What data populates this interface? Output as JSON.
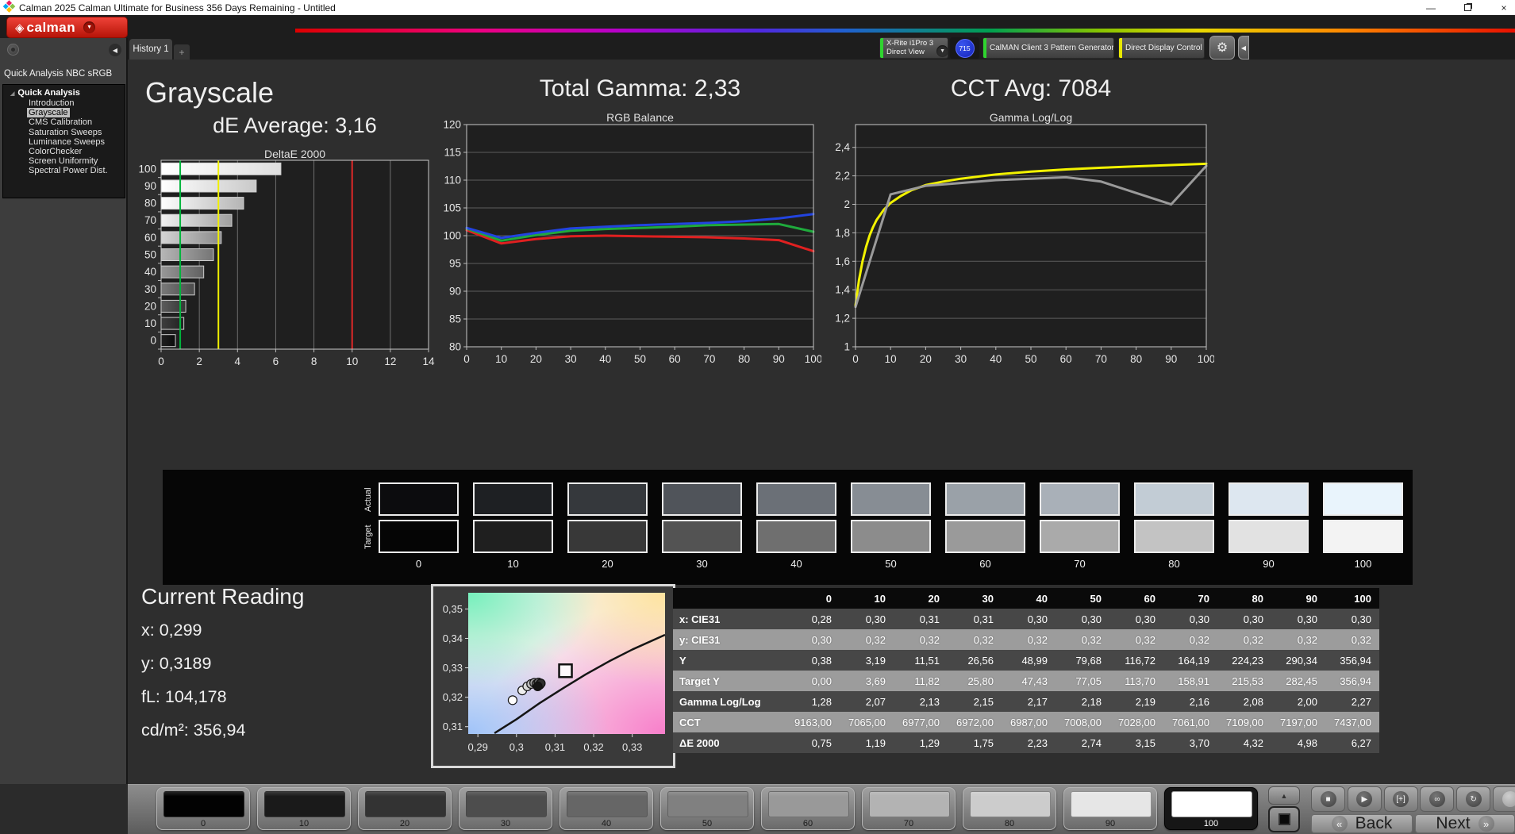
{
  "window": {
    "title": "Calman 2025 Calman Ultimate for Business 356 Days Remaining  - Untitled"
  },
  "toolbar": {
    "logo_text": "calman",
    "tab_label": "History 1",
    "tab_add_label": "+",
    "meter_device_line1": "X-Rite i1Pro 3",
    "meter_device_line2": "Direct View",
    "meter_badge": "715",
    "pattern_generator_label": "CalMAN Client 3 Pattern Generator",
    "display_control_label": "Direct Display Control",
    "device_bar_color": "#2fd42f",
    "pattern_bar_color": "#2fd42f",
    "display_bar_color": "#e8e800"
  },
  "sidebar": {
    "workflow_title": "Quick Analysis NBC sRGB",
    "root_label": "Quick Analysis",
    "items": [
      "Introduction",
      "Grayscale",
      "CMS Calibration",
      "Saturation Sweeps",
      "Luminance Sweeps",
      "ColorChecker",
      "Screen Uniformity",
      "Spectral Power Dist."
    ],
    "selected": "Grayscale"
  },
  "headings": {
    "page_title": "Grayscale",
    "de_average": "dE Average: 3,16",
    "total_gamma": "Total Gamma: 2,33",
    "cct_avg": "CCT Avg: 7084"
  },
  "chart_data": [
    {
      "type": "bar",
      "title": "DeltaE 2000",
      "orientation": "horizontal",
      "categories": [
        0,
        10,
        20,
        30,
        40,
        50,
        60,
        70,
        80,
        90,
        100
      ],
      "values": [
        0.75,
        1.19,
        1.29,
        1.75,
        2.23,
        2.74,
        3.15,
        3.7,
        4.32,
        4.98,
        6.27
      ],
      "xlim": [
        0,
        14
      ],
      "x_ticks": [
        0,
        2,
        4,
        6,
        8,
        10,
        12,
        14
      ],
      "ref_lines": [
        {
          "value": 1,
          "color": "#00b43c"
        },
        {
          "value": 3,
          "color": "#f0f000"
        },
        {
          "value": 10,
          "color": "#e02828"
        }
      ]
    },
    {
      "type": "line",
      "title": "RGB Balance",
      "x": [
        0,
        10,
        20,
        30,
        40,
        50,
        60,
        70,
        80,
        90,
        100
      ],
      "ylim": [
        80,
        120
      ],
      "y_ticks": [
        80,
        85,
        90,
        95,
        100,
        105,
        110,
        115,
        120
      ],
      "x_ticks": [
        0,
        10,
        20,
        30,
        40,
        50,
        60,
        70,
        80,
        90,
        100
      ],
      "series": [
        {
          "name": "Red",
          "color": "#e02020",
          "values": [
            101.0,
            98.6,
            99.4,
            99.9,
            100.0,
            99.9,
            99.8,
            99.7,
            99.5,
            99.2,
            97.2
          ]
        },
        {
          "name": "Green",
          "color": "#1faa3c",
          "values": [
            101.3,
            99.1,
            100.1,
            100.9,
            101.2,
            101.4,
            101.6,
            101.9,
            102.0,
            102.1,
            100.7
          ]
        },
        {
          "name": "Blue",
          "color": "#2244e0",
          "values": [
            101.4,
            99.6,
            100.5,
            101.3,
            101.6,
            101.9,
            102.1,
            102.3,
            102.6,
            103.1,
            103.9
          ]
        }
      ]
    },
    {
      "type": "line",
      "title": "Gamma Log/Log",
      "ylim": [
        1,
        2.56
      ],
      "y_ticks": [
        1,
        1.2,
        1.4,
        1.6,
        1.8,
        2,
        2.2,
        2.4
      ],
      "y_tick_labels": [
        "1",
        "1,2",
        "1,4",
        "1,6",
        "1,8",
        "2",
        "2,2",
        "2,4"
      ],
      "x_ticks": [
        0,
        10,
        20,
        30,
        40,
        50,
        60,
        70,
        80,
        90,
        100
      ],
      "series": [
        {
          "name": "Target Gamma",
          "color": "#f2f200",
          "x": [
            0,
            1,
            2,
            3,
            4,
            5,
            6,
            8,
            10,
            13,
            16,
            20,
            25,
            30,
            40,
            50,
            60,
            70,
            80,
            90,
            100
          ],
          "values": [
            1.29,
            1.47,
            1.6,
            1.7,
            1.78,
            1.84,
            1.89,
            1.96,
            2.01,
            2.06,
            2.1,
            2.135,
            2.16,
            2.18,
            2.21,
            2.23,
            2.245,
            2.257,
            2.267,
            2.276,
            2.285
          ]
        },
        {
          "name": "Measured Gamma",
          "color": "#9a9a9a",
          "x": [
            0,
            10,
            20,
            30,
            40,
            50,
            60,
            70,
            80,
            90,
            100
          ],
          "values": [
            1.28,
            2.07,
            2.13,
            2.15,
            2.17,
            2.18,
            2.19,
            2.16,
            2.08,
            2.0,
            2.27
          ]
        }
      ]
    },
    {
      "type": "scatter",
      "title": "CIE xy chromaticity detail",
      "xlim": [
        0.2875,
        0.3385
      ],
      "ylim": [
        0.3075,
        0.3555
      ],
      "x_ticks": [
        0.29,
        0.3,
        0.31,
        0.32,
        0.33
      ],
      "x_tick_labels": [
        "0,29",
        "0,3",
        "0,31",
        "0,32",
        "0,33"
      ],
      "y_ticks": [
        0.31,
        0.32,
        0.33,
        0.34,
        0.35
      ],
      "y_tick_labels": [
        "0,31",
        "0,32",
        "0,33",
        "0,34",
        "0,35"
      ],
      "locus": [
        [
          0.2943,
          0.3078
        ],
        [
          0.3,
          0.3125
        ],
        [
          0.306,
          0.318
        ],
        [
          0.312,
          0.323
        ],
        [
          0.318,
          0.3278
        ],
        [
          0.324,
          0.3322
        ],
        [
          0.33,
          0.3362
        ],
        [
          0.3385,
          0.3412
        ]
      ],
      "target_marker": {
        "x": 0.3127,
        "y": 0.329
      },
      "points": [
        {
          "x": 0.299,
          "y": 0.319,
          "fill": "#ffffff"
        },
        {
          "x": 0.3015,
          "y": 0.3223,
          "fill": "#efefef"
        },
        {
          "x": 0.3028,
          "y": 0.3237,
          "fill": "#d8d8d8"
        },
        {
          "x": 0.3038,
          "y": 0.3245,
          "fill": "#bdbdbd"
        },
        {
          "x": 0.3046,
          "y": 0.3249,
          "fill": "#a0a0a0"
        },
        {
          "x": 0.3052,
          "y": 0.3245,
          "fill": "#838383"
        },
        {
          "x": 0.3057,
          "y": 0.325,
          "fill": "#666666"
        },
        {
          "x": 0.306,
          "y": 0.3242,
          "fill": "#4a4a4a"
        },
        {
          "x": 0.3063,
          "y": 0.3247,
          "fill": "#2e2e2e"
        },
        {
          "x": 0.3055,
          "y": 0.3237,
          "fill": "#141414"
        }
      ]
    }
  ],
  "swatch_strip": {
    "row_labels": [
      "Actual",
      "Target"
    ],
    "levels": [
      "0",
      "10",
      "20",
      "30",
      "40",
      "50",
      "60",
      "70",
      "80",
      "90",
      "100"
    ],
    "actual_colors": [
      "#0c0c0e",
      "#1e2023",
      "#35383c",
      "#50545a",
      "#6b7077",
      "#878d94",
      "#9aa1a8",
      "#a9b0b8",
      "#c2ccd5",
      "#dde7f0",
      "#e9f4fc"
    ],
    "target_colors": [
      "#050505",
      "#1f1f1f",
      "#383838",
      "#535353",
      "#6f6f6f",
      "#8c8c8c",
      "#9a9a9a",
      "#aaaaaa",
      "#c3c3c3",
      "#e2e2e2",
      "#f3f3f3"
    ]
  },
  "current_reading": {
    "title": "Current Reading",
    "x_line": "x: 0,299",
    "y_line": "y: 0,3189",
    "fl_line": "fL: 104,178",
    "cd_line": "cd/m²: 356,94"
  },
  "table": {
    "columns": [
      "0",
      "10",
      "20",
      "30",
      "40",
      "50",
      "60",
      "70",
      "80",
      "90",
      "100"
    ],
    "rows": [
      {
        "label": "x: CIE31",
        "shade": "dark",
        "values": [
          "0,28",
          "0,30",
          "0,31",
          "0,31",
          "0,30",
          "0,30",
          "0,30",
          "0,30",
          "0,30",
          "0,30",
          "0,30"
        ]
      },
      {
        "label": "y: CIE31",
        "shade": "light",
        "values": [
          "0,30",
          "0,32",
          "0,32",
          "0,32",
          "0,32",
          "0,32",
          "0,32",
          "0,32",
          "0,32",
          "0,32",
          "0,32"
        ]
      },
      {
        "label": "Y",
        "shade": "dark",
        "values": [
          "0,38",
          "3,19",
          "11,51",
          "26,56",
          "48,99",
          "79,68",
          "116,72",
          "164,19",
          "224,23",
          "290,34",
          "356,94"
        ]
      },
      {
        "label": "Target Y",
        "shade": "light",
        "values": [
          "0,00",
          "3,69",
          "11,82",
          "25,80",
          "47,43",
          "77,05",
          "113,70",
          "158,91",
          "215,53",
          "282,45",
          "356,94"
        ]
      },
      {
        "label": "Gamma Log/Log",
        "shade": "dark",
        "values": [
          "1,28",
          "2,07",
          "2,13",
          "2,15",
          "2,17",
          "2,18",
          "2,19",
          "2,16",
          "2,08",
          "2,00",
          "2,27"
        ]
      },
      {
        "label": "CCT",
        "shade": "light",
        "values": [
          "9163,00",
          "7065,00",
          "6977,00",
          "6972,00",
          "6987,00",
          "7008,00",
          "7028,00",
          "7061,00",
          "7109,00",
          "7197,00",
          "7437,00"
        ]
      },
      {
        "label": "ΔE 2000",
        "shade": "dark",
        "values": [
          "0,75",
          "1,19",
          "1,29",
          "1,75",
          "2,23",
          "2,74",
          "3,15",
          "3,70",
          "4,32",
          "4,98",
          "6,27"
        ]
      }
    ]
  },
  "bottom_bar": {
    "patterns": [
      {
        "label": "0",
        "color": "#020202"
      },
      {
        "label": "10",
        "color": "#1a1a1a"
      },
      {
        "label": "20",
        "color": "#333333"
      },
      {
        "label": "30",
        "color": "#4d4d4d"
      },
      {
        "label": "40",
        "color": "#666666"
      },
      {
        "label": "50",
        "color": "#808080"
      },
      {
        "label": "60",
        "color": "#999999"
      },
      {
        "label": "70",
        "color": "#b3b3b3"
      },
      {
        "label": "80",
        "color": "#cccccc"
      },
      {
        "label": "90",
        "color": "#e6e6e6"
      },
      {
        "label": "100",
        "color": "#ffffff"
      }
    ],
    "selected_pattern": "100",
    "up_glyph": "▲",
    "transport": [
      {
        "name": "stop-button",
        "glyph": "■"
      },
      {
        "name": "play-button",
        "glyph": "▶"
      },
      {
        "name": "frame-advance-button",
        "glyph": "[+]"
      },
      {
        "name": "continuous-read-button",
        "glyph": "∞"
      },
      {
        "name": "refresh-button",
        "glyph": "↻"
      },
      {
        "name": "extra-round-button",
        "glyph": ""
      }
    ],
    "back_glyph": "«",
    "back_label": "Back",
    "next_label": "Next",
    "next_glyph": "»"
  }
}
